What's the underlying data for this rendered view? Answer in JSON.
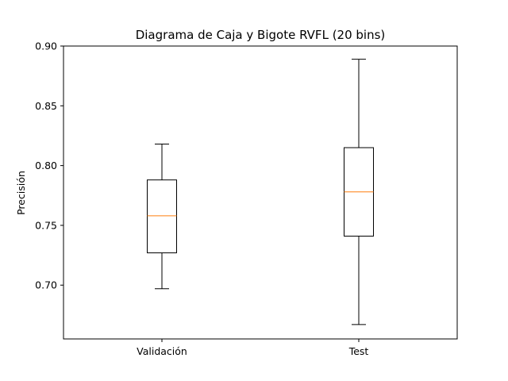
{
  "chart_data": {
    "type": "boxplot",
    "title": "Diagrama de Caja y Bigote RVFL (20 bins)",
    "xlabel": "",
    "ylabel": "Precisión",
    "ylim": [
      0.655,
      0.9
    ],
    "yticks": [
      "0.70",
      "0.75",
      "0.80",
      "0.85",
      "0.90"
    ],
    "grid": false,
    "categories": [
      "Validación",
      "Test"
    ],
    "boxes": [
      {
        "category": "Validación",
        "whisker_low": 0.697,
        "q1": 0.727,
        "median": 0.758,
        "q3": 0.788,
        "whisker_high": 0.818
      },
      {
        "category": "Test",
        "whisker_low": 0.667,
        "q1": 0.741,
        "median": 0.778,
        "q3": 0.815,
        "whisker_high": 0.889
      }
    ],
    "colors": {
      "box": "#000000",
      "median": "#ff7f0e"
    }
  }
}
